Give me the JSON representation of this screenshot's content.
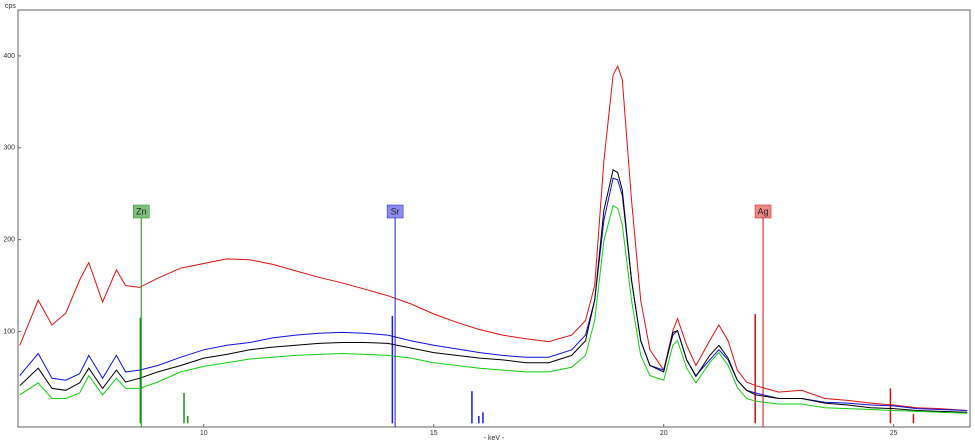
{
  "chart_data": {
    "type": "line",
    "y_label": "cps",
    "x_label": "- keV -",
    "xlim": [
      5.96,
      26.66
    ],
    "ylim": [
      -4,
      450
    ],
    "xticks": [
      10,
      15,
      20,
      25
    ],
    "yticks": [
      100,
      200,
      300,
      400
    ],
    "x": [
      6.0,
      6.4,
      6.7,
      7.0,
      7.3,
      7.5,
      7.8,
      8.1,
      8.3,
      8.6,
      9.0,
      9.5,
      10,
      10.5,
      11,
      11.5,
      12,
      12.5,
      13,
      13.5,
      14,
      14.5,
      15,
      15.5,
      16,
      16.5,
      17,
      17.5,
      18,
      18.3,
      18.5,
      18.7,
      18.9,
      19.0,
      19.1,
      19.3,
      19.5,
      19.7,
      20.0,
      20.2,
      20.3,
      20.5,
      20.7,
      21.0,
      21.2,
      21.4,
      21.6,
      21.8,
      22.0,
      22.5,
      23,
      23.5,
      24,
      24.5,
      25,
      25.5,
      26,
      26.6
    ],
    "series": [
      {
        "color": "#e01010",
        "values": [
          85,
          134,
          107,
          120,
          156,
          175,
          132,
          167,
          150,
          148,
          158,
          169,
          174,
          179,
          178,
          173,
          166,
          159,
          153,
          146,
          139,
          130,
          119,
          110,
          102,
          96,
          92,
          89,
          96,
          112,
          150,
          286,
          379,
          389,
          374,
          243,
          134,
          80,
          58,
          101,
          114,
          85,
          63,
          90,
          107,
          90,
          58,
          45,
          41,
          34,
          36,
          27,
          25,
          22,
          20,
          17,
          16,
          14
        ]
      },
      {
        "color": "#1010e0",
        "values": [
          52,
          76,
          49,
          47,
          54,
          74,
          49,
          74,
          56,
          58,
          63,
          72,
          80,
          85,
          88,
          93,
          96,
          98,
          99,
          98,
          96,
          90,
          85,
          81,
          77,
          74,
          72,
          72,
          80,
          96,
          134,
          221,
          267,
          265,
          248,
          156,
          90,
          63,
          58,
          96,
          101,
          69,
          52,
          69,
          80,
          69,
          47,
          36,
          33,
          27,
          27,
          23,
          22,
          20,
          19,
          16,
          15,
          14
        ]
      },
      {
        "color": "#000000",
        "values": [
          41,
          60,
          38,
          36,
          44,
          60,
          38,
          58,
          45,
          49,
          56,
          63,
          71,
          75,
          80,
          83,
          85,
          87,
          88,
          88,
          87,
          82,
          77,
          74,
          71,
          69,
          66,
          66,
          74,
          90,
          134,
          232,
          276,
          273,
          254,
          156,
          90,
          63,
          56,
          99,
          101,
          69,
          51,
          74,
          85,
          71,
          47,
          36,
          31,
          27,
          27,
          22,
          20,
          17,
          16,
          14,
          13,
          12
        ]
      },
      {
        "color": "#10d010",
        "values": [
          31,
          44,
          27,
          27,
          33,
          52,
          31,
          49,
          38,
          38,
          45,
          56,
          62,
          66,
          70,
          72,
          74,
          75,
          76,
          75,
          74,
          71,
          66,
          63,
          60,
          58,
          56,
          56,
          61,
          74,
          112,
          199,
          237,
          234,
          216,
          134,
          74,
          52,
          47,
          85,
          90,
          60,
          44,
          66,
          77,
          63,
          39,
          27,
          24,
          21,
          21,
          17,
          16,
          15,
          14,
          13,
          12,
          11
        ]
      }
    ],
    "elements": [
      {
        "label": "Zn",
        "energy": 8.64,
        "color": "#1a8f1a",
        "label_fill": "#7fc07f",
        "line_energies": [
          8.62,
          9.57,
          9.65
        ],
        "line_heights": [
          115,
          33,
          8
        ]
      },
      {
        "label": "Sr",
        "energy": 14.16,
        "color": "#1a1ae0",
        "label_fill": "#8c8cf0",
        "line_energies": [
          14.1,
          15.83,
          15.98,
          16.07
        ],
        "line_heights": [
          117,
          35,
          8,
          12
        ]
      },
      {
        "label": "Ag",
        "energy": 22.16,
        "color": "#d01010",
        "label_fill": "#f08888",
        "line_energies": [
          21.99,
          24.93,
          25.43
        ],
        "line_heights": [
          119,
          38,
          10
        ]
      }
    ]
  }
}
